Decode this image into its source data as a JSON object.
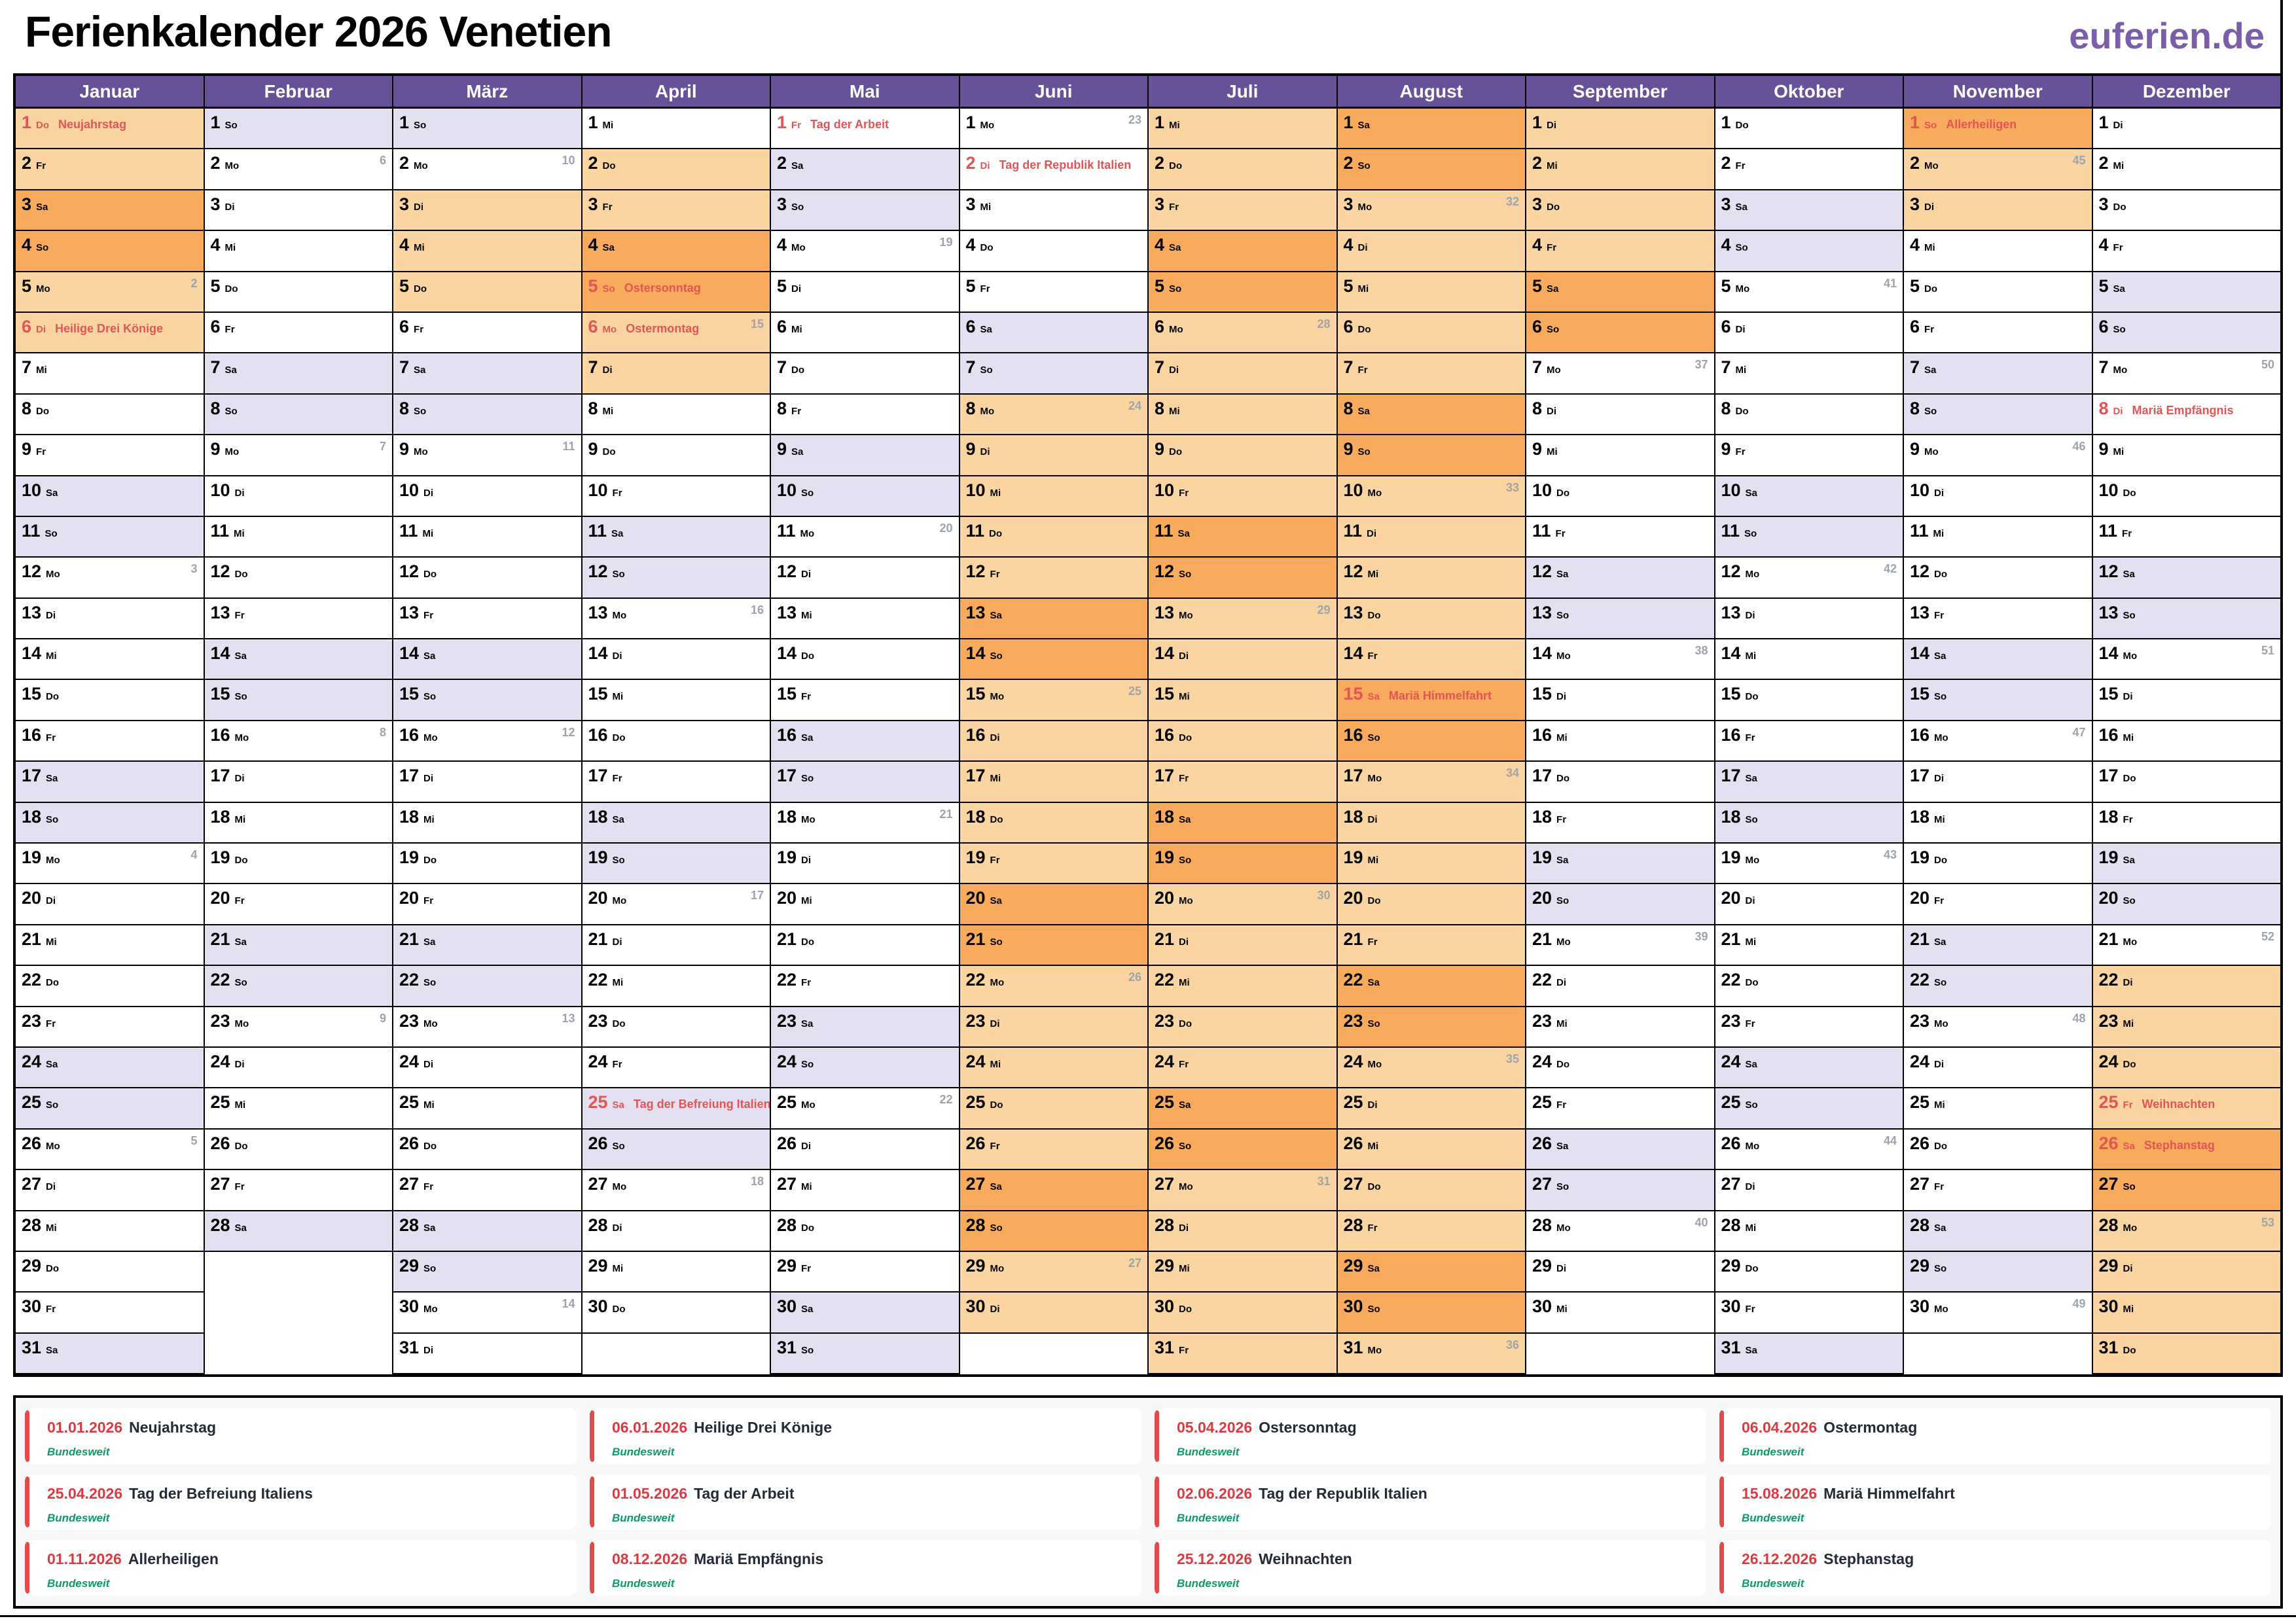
{
  "page": {
    "title": "Ferienkalender 2026 Venetien",
    "logo": "euferien.de"
  },
  "colors": {
    "header_purple": "#675199",
    "weekend": "#E4DFF1",
    "ferien_weekday": "#FBD5A1",
    "ferien_weekend": "#F8AB5C",
    "holiday_red": "#E25555",
    "week_gray": "#9EA3AB",
    "legend_red": "#DA3A40",
    "legend_bar_red": "#E14B4B",
    "legend_green": "#0C9B62",
    "legend_bg": "#F7F8FA",
    "logo_purple": "#7B5EA8",
    "name_dark": "#232B36"
  },
  "weekday_abbr": [
    "Mo",
    "Di",
    "Mi",
    "Do",
    "Fr",
    "Sa",
    "So"
  ],
  "months": [
    {
      "name": "Januar",
      "days": 31,
      "start": 3,
      "weeks": {
        "5": 2,
        "12": 3,
        "19": 4,
        "26": 5
      },
      "holidays": {
        "1": "Neujahrstag",
        "6": "Heilige Drei Könige"
      },
      "ferien": [
        [
          1,
          6
        ]
      ]
    },
    {
      "name": "Februar",
      "days": 28,
      "start": 6,
      "weeks": {
        "2": 6,
        "9": 7,
        "16": 8,
        "23": 9
      },
      "holidays": {},
      "ferien": []
    },
    {
      "name": "März",
      "days": 31,
      "start": 6,
      "weeks": {
        "2": 10,
        "9": 11,
        "16": 12,
        "23": 13,
        "30": 14
      },
      "holidays": {},
      "ferien": [
        [
          3,
          5
        ]
      ]
    },
    {
      "name": "April",
      "days": 30,
      "start": 2,
      "weeks": {
        "6": 15,
        "13": 16,
        "20": 17,
        "27": 18
      },
      "holidays": {
        "5": "Ostersonntag",
        "6": "Ostermontag",
        "25": "Tag der Befreiung Italiens"
      },
      "ferien": [
        [
          2,
          7
        ]
      ]
    },
    {
      "name": "Mai",
      "days": 31,
      "start": 4,
      "weeks": {
        "4": 19,
        "11": 20,
        "18": 21,
        "25": 22
      },
      "holidays": {
        "1": "Tag der Arbeit"
      },
      "ferien": []
    },
    {
      "name": "Juni",
      "days": 30,
      "start": 0,
      "weeks": {
        "1": 23,
        "8": 24,
        "15": 25,
        "22": 26,
        "29": 27
      },
      "holidays": {
        "2": "Tag der Republik Italien"
      },
      "ferien": [
        [
          8,
          30
        ]
      ]
    },
    {
      "name": "Juli",
      "days": 31,
      "start": 2,
      "weeks": {
        "6": 28,
        "13": 29,
        "20": 30,
        "27": 31
      },
      "holidays": {},
      "ferien": [
        [
          1,
          31
        ]
      ]
    },
    {
      "name": "August",
      "days": 31,
      "start": 5,
      "weeks": {
        "3": 32,
        "10": 33,
        "17": 34,
        "24": 35,
        "31": 36
      },
      "holidays": {
        "15": "Mariä Himmelfahrt"
      },
      "ferien": [
        [
          1,
          31
        ]
      ]
    },
    {
      "name": "September",
      "days": 30,
      "start": 1,
      "weeks": {
        "7": 37,
        "14": 38,
        "21": 39,
        "28": 40
      },
      "holidays": {},
      "ferien": [
        [
          1,
          6
        ]
      ]
    },
    {
      "name": "Oktober",
      "days": 31,
      "start": 3,
      "weeks": {
        "5": 41,
        "12": 42,
        "19": 43,
        "26": 44
      },
      "holidays": {},
      "ferien": []
    },
    {
      "name": "November",
      "days": 30,
      "start": 6,
      "weeks": {
        "2": 45,
        "9": 46,
        "16": 47,
        "23": 48,
        "30": 49
      },
      "holidays": {
        "1": "Allerheiligen"
      },
      "ferien": [
        [
          1,
          3
        ]
      ]
    },
    {
      "name": "Dezember",
      "days": 31,
      "start": 1,
      "weeks": {
        "7": 50,
        "14": 51,
        "21": 52,
        "28": 53
      },
      "holidays": {
        "8": "Mariä Empfängnis",
        "25": "Weihnachten",
        "26": "Stephanstag"
      },
      "ferien": [
        [
          22,
          31
        ]
      ]
    }
  ],
  "legend": {
    "scope_label": "Bundesweit",
    "entries": [
      {
        "date": "01.01.2026",
        "name": "Neujahrstag"
      },
      {
        "date": "06.01.2026",
        "name": "Heilige Drei Könige"
      },
      {
        "date": "05.04.2026",
        "name": "Ostersonntag"
      },
      {
        "date": "06.04.2026",
        "name": "Ostermontag"
      },
      {
        "date": "25.04.2026",
        "name": "Tag der Befreiung Italiens"
      },
      {
        "date": "01.05.2026",
        "name": "Tag der Arbeit"
      },
      {
        "date": "02.06.2026",
        "name": "Tag der Republik Italien"
      },
      {
        "date": "15.08.2026",
        "name": "Mariä Himmelfahrt"
      },
      {
        "date": "01.11.2026",
        "name": "Allerheiligen"
      },
      {
        "date": "08.12.2026",
        "name": "Mariä Empfängnis"
      },
      {
        "date": "25.12.2026",
        "name": "Weihnachten"
      },
      {
        "date": "26.12.2026",
        "name": "Stephanstag"
      }
    ]
  }
}
